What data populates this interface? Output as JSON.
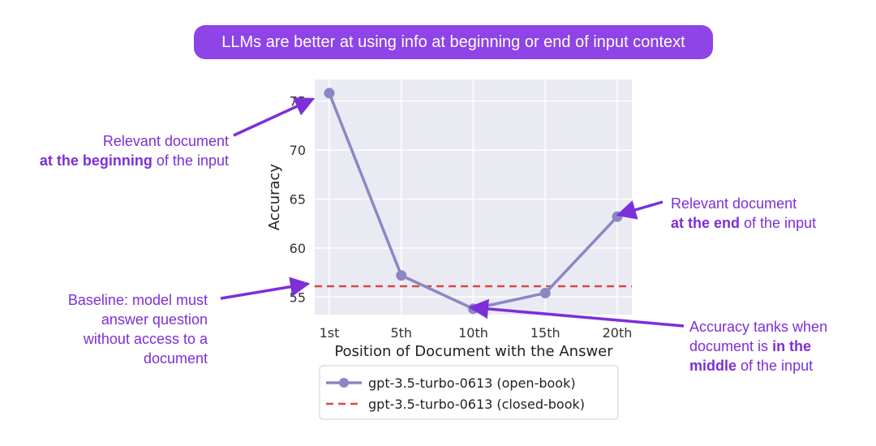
{
  "banner": {
    "text": "LLMs are better at using info at beginning or end of input context"
  },
  "annotations": {
    "beginning": {
      "line1": "Relevant document",
      "bold": "at the beginning",
      "rest": " of the input"
    },
    "end": {
      "line1": "Relevant document",
      "bold": "at the end",
      "rest": " of the input"
    },
    "baseline": {
      "lines": [
        "Baseline: model must",
        "answer question",
        "without access to a",
        "document"
      ]
    },
    "middle": {
      "line1": "Accuracy tanks when",
      "pre": "document is ",
      "bold1": "in the",
      "bold2": "middle",
      "rest": " of the input"
    }
  },
  "colors": {
    "annotation": "#7d2fd8",
    "banner": "#8e44e6",
    "series_open": "#8c86c5",
    "series_closed": "#d14b4b",
    "plot_bg": "#eaeaf2"
  },
  "chart_data": {
    "type": "line",
    "x": [
      "1st",
      "5th",
      "10th",
      "15th",
      "20th"
    ],
    "xlabel": "Position of Document with the Answer",
    "ylabel": "Accuracy",
    "yticks": [
      55,
      60,
      65,
      70,
      75
    ],
    "ylim": [
      53.2,
      77.2
    ],
    "grid": true,
    "legend_position": "below",
    "series": [
      {
        "name": "gpt-3.5-turbo-0613 (open-book)",
        "style": "solid-markers",
        "values": [
          75.8,
          57.2,
          53.8,
          55.4,
          63.2
        ]
      },
      {
        "name": "gpt-3.5-turbo-0613 (closed-book)",
        "style": "dashed",
        "values": [
          56.1,
          56.1,
          56.1,
          56.1,
          56.1
        ]
      }
    ]
  }
}
